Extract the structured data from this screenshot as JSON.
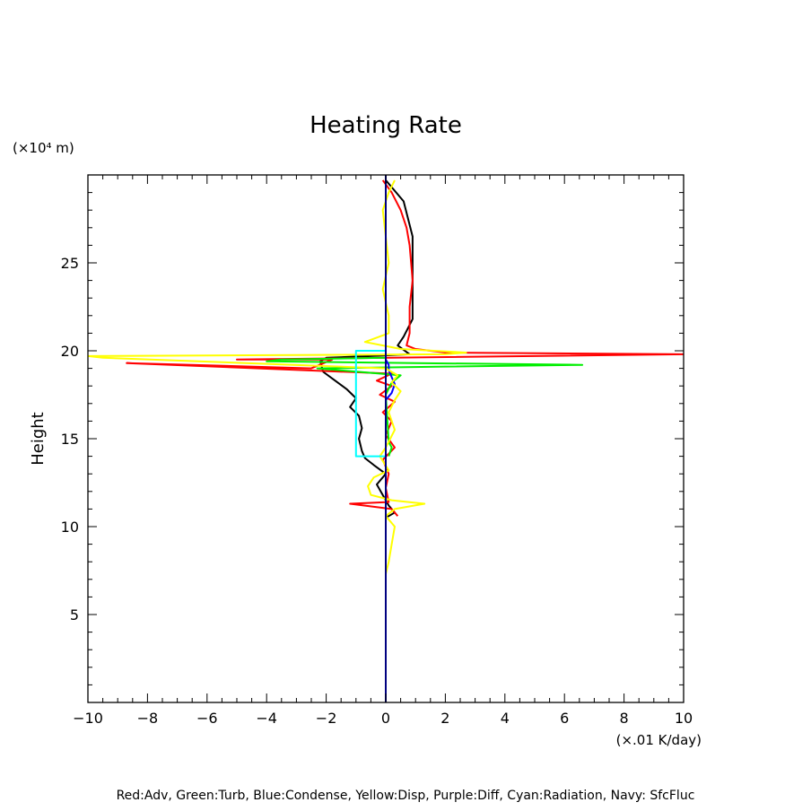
{
  "chart_data": {
    "type": "line",
    "title": "Heating Rate",
    "ylabel": "Height",
    "y_unit": "(×10⁴ m)",
    "x_unit": "(×.01 K/day)",
    "xlim": [
      -10,
      10
    ],
    "ylim": [
      0,
      30
    ],
    "x_ticks": [
      -10,
      -8,
      -6,
      -4,
      -2,
      0,
      2,
      4,
      6,
      8,
      10
    ],
    "x_tick_labels": [
      "−10",
      "−8",
      "−6",
      "−4",
      "−2",
      "0",
      "2",
      "4",
      "6",
      "8",
      "10"
    ],
    "y_ticks": [
      5,
      10,
      15,
      20,
      25
    ],
    "y_tick_labels": [
      "5",
      "10",
      "15",
      "20",
      "25"
    ],
    "grid": false,
    "legend_text": "Red:Adv, Green:Turb, Blue:Condense, Yellow:Disp, Purple:Diff, Cyan:Radiation, Navy: SfcFluc",
    "series": [
      {
        "color": "#000000",
        "points": [
          [
            0,
            10.5
          ],
          [
            0.3,
            10.8
          ],
          [
            0.1,
            11.2
          ],
          [
            -0.3,
            12.4
          ],
          [
            0,
            13.0
          ],
          [
            -0.4,
            13.5
          ],
          [
            -0.7,
            13.9
          ],
          [
            -0.8,
            14.3
          ],
          [
            -0.9,
            15.0
          ],
          [
            -0.8,
            15.6
          ],
          [
            -0.9,
            16.3
          ],
          [
            -1.2,
            16.8
          ],
          [
            -1.0,
            17.3
          ],
          [
            -1.3,
            17.8
          ],
          [
            -1.7,
            18.3
          ],
          [
            -2.1,
            18.8
          ],
          [
            -2.2,
            19.4
          ],
          [
            -2.0,
            19.6
          ],
          [
            -0.5,
            19.7
          ],
          [
            0.8,
            19.8
          ],
          [
            0.4,
            20.3
          ],
          [
            0.6,
            20.8
          ],
          [
            0.9,
            21.8
          ],
          [
            0.9,
            24.5
          ],
          [
            0.9,
            26.5
          ],
          [
            0.6,
            28.5
          ],
          [
            0,
            29.7
          ]
        ]
      },
      {
        "color": "#ff0000",
        "points": [
          [
            0.4,
            10.6
          ],
          [
            0.2,
            11.0
          ],
          [
            -1.2,
            11.3
          ],
          [
            0.1,
            11.4
          ],
          [
            0,
            12.2
          ],
          [
            0.1,
            13.0
          ],
          [
            -0.1,
            13.8
          ],
          [
            0.3,
            14.5
          ],
          [
            0,
            15.2
          ],
          [
            0.2,
            16.0
          ],
          [
            -0.1,
            16.5
          ],
          [
            0.3,
            17.1
          ],
          [
            -0.2,
            17.5
          ],
          [
            0.2,
            18.0
          ],
          [
            -0.3,
            18.3
          ],
          [
            0.2,
            18.7
          ],
          [
            -8.7,
            19.3
          ],
          [
            -6.5,
            19.2
          ],
          [
            -2.5,
            19.0
          ],
          [
            -1.8,
            19.5
          ],
          [
            -5,
            19.5
          ],
          [
            10,
            19.8
          ],
          [
            2,
            19.9
          ],
          [
            1.0,
            20.1
          ],
          [
            0.7,
            20.3
          ],
          [
            0.8,
            21.0
          ],
          [
            0.8,
            22.5
          ],
          [
            0.9,
            24.0
          ],
          [
            0.8,
            26.0
          ],
          [
            0.7,
            27.0
          ],
          [
            0.5,
            28.0
          ],
          [
            0.2,
            29.0
          ],
          [
            -0.1,
            29.7
          ]
        ]
      },
      {
        "color": "#00ee00",
        "points": [
          [
            0.1,
            14.0
          ],
          [
            0.2,
            14.5
          ],
          [
            0.1,
            14.8
          ],
          [
            0,
            17.5
          ],
          [
            0.2,
            18.2
          ],
          [
            0.5,
            18.6
          ],
          [
            -2.3,
            19.0
          ],
          [
            2,
            19.1
          ],
          [
            6.6,
            19.2
          ],
          [
            1,
            19.3
          ],
          [
            -4,
            19.4
          ],
          [
            -3.5,
            19.5
          ],
          [
            0,
            19.6
          ]
        ]
      },
      {
        "color": "#0000ff",
        "points": [
          [
            0,
            17.2
          ],
          [
            0.2,
            17.6
          ],
          [
            0.3,
            18.1
          ],
          [
            0.2,
            18.5
          ],
          [
            0.1,
            18.9
          ],
          [
            0.1,
            19.2
          ],
          [
            0,
            19.5
          ]
        ]
      },
      {
        "color": "#ffff00",
        "points": [
          [
            0,
            7.3
          ],
          [
            0.1,
            8.0
          ],
          [
            0.2,
            9.0
          ],
          [
            0.3,
            10.0
          ],
          [
            0,
            10.6
          ],
          [
            0.3,
            11.0
          ],
          [
            1.3,
            11.3
          ],
          [
            0.2,
            11.5
          ],
          [
            -0.5,
            11.8
          ],
          [
            -0.6,
            12.3
          ],
          [
            -0.4,
            12.8
          ],
          [
            0.1,
            13.2
          ],
          [
            -0.2,
            14.0
          ],
          [
            0,
            14.5
          ],
          [
            0.3,
            15.5
          ],
          [
            0.1,
            16.5
          ],
          [
            0.3,
            17.2
          ],
          [
            0.5,
            17.7
          ],
          [
            0.2,
            18.2
          ],
          [
            0.4,
            18.6
          ],
          [
            0,
            19.0
          ],
          [
            -9.5,
            19.6
          ],
          [
            -10,
            19.7
          ],
          [
            2,
            19.8
          ],
          [
            2.7,
            19.9
          ],
          [
            0.5,
            20.1
          ],
          [
            -0.7,
            20.5
          ],
          [
            0.1,
            21.0
          ],
          [
            0.1,
            22.0
          ],
          [
            -0.1,
            23.5
          ],
          [
            0.1,
            25.0
          ],
          [
            0,
            26.5
          ],
          [
            -0.1,
            28.0
          ],
          [
            0.1,
            29.0
          ],
          [
            0.3,
            29.7
          ]
        ]
      },
      {
        "color": "#00ffff",
        "points": [
          [
            0,
            14.0
          ],
          [
            -1.0,
            14.0
          ],
          [
            -1.0,
            20.0
          ],
          [
            0,
            20.0
          ]
        ]
      },
      {
        "color": "#000080",
        "points": [
          [
            0,
            0
          ],
          [
            0,
            30
          ]
        ]
      }
    ]
  }
}
